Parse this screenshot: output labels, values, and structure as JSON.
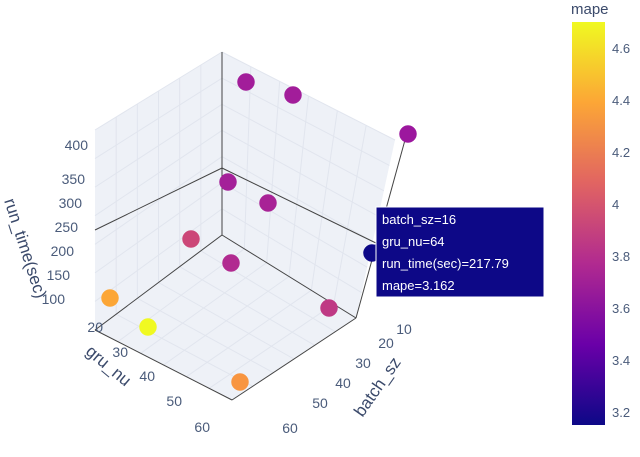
{
  "chart_data": {
    "type": "scatter",
    "title": "",
    "x_axis": {
      "label": "batch_sz",
      "ticks": [
        "10",
        "20",
        "30",
        "40",
        "50",
        "60"
      ]
    },
    "y_axis": {
      "label": "gru_nu",
      "ticks": [
        "20",
        "30",
        "40",
        "50",
        "60"
      ]
    },
    "z_axis": {
      "label": "run_time(sec)",
      "ticks": [
        "100",
        "150",
        "200",
        "250",
        "300",
        "350",
        "400"
      ]
    },
    "colorbar": {
      "title": "mape",
      "ticks": [
        "3.2",
        "3.4",
        "3.6",
        "3.8",
        "4",
        "4.2",
        "4.4",
        "4.6"
      ],
      "range": [
        3.15,
        4.7
      ],
      "colors": [
        "#0d0887",
        "#6a00a8",
        "#b12a90",
        "#e16462",
        "#fca636",
        "#f0f921"
      ]
    },
    "points": [
      {
        "mape": 3.7,
        "color": "#a21d9a"
      },
      {
        "mape": 3.7,
        "color": "#a21d9a"
      },
      {
        "mape": 3.6,
        "color": "#9c179e"
      },
      {
        "mape": 3.7,
        "color": "#a42099"
      },
      {
        "mape": 3.7,
        "color": "#a82296"
      },
      {
        "mape": 3.9,
        "color": "#cc4778"
      },
      {
        "mape": 3.75,
        "color": "#b12a90"
      },
      {
        "mape": 3.8,
        "color": "#bf3984"
      },
      {
        "mape": 4.35,
        "color": "#fca636"
      },
      {
        "mape": 4.6,
        "color": "#f0f921"
      },
      {
        "mape": 4.3,
        "color": "#f89540"
      },
      {
        "mape": 3.162,
        "color": "#0d0887"
      }
    ],
    "hover": {
      "lines": [
        "batch_sz=16",
        "gru_nu=64",
        "run_time(sec)=217.79",
        "mape=3.162"
      ],
      "color": "#0d0887"
    }
  }
}
